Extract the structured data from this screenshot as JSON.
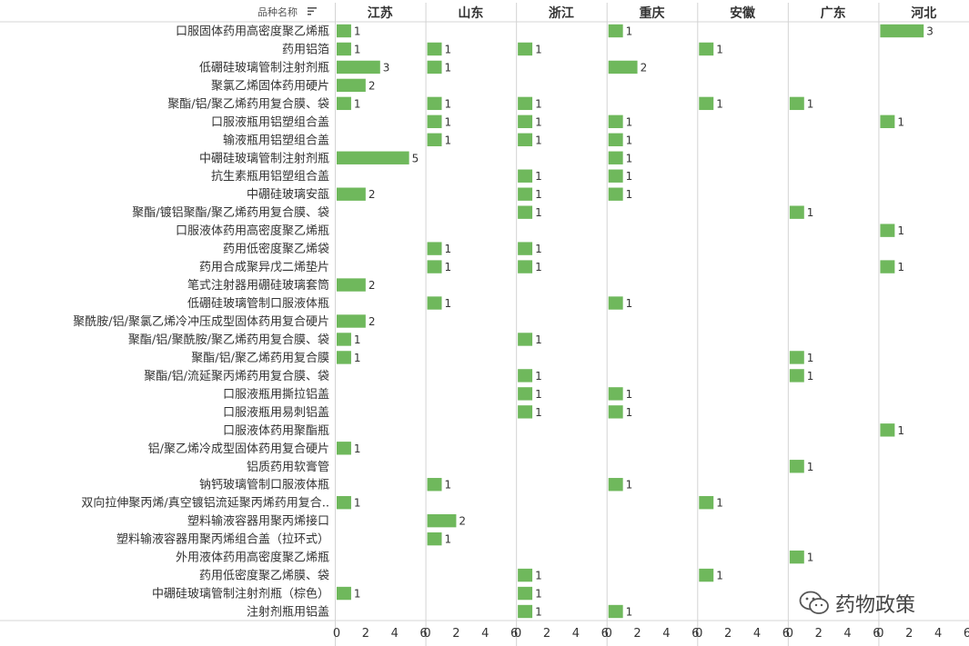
{
  "chart_data": {
    "type": "bar",
    "orientation": "horizontal-small-multiples",
    "row_field_label": "品种名称",
    "columns": [
      "江苏",
      "山东",
      "浙江",
      "重庆",
      "安徽",
      "广东",
      "河北"
    ],
    "x_ticks": [
      0,
      2,
      4,
      6
    ],
    "xlim": [
      0,
      6
    ],
    "bar_color": "#6fb85c",
    "grid": true,
    "rows": [
      {
        "name": "口服固体药用高密度聚乙烯瓶",
        "values": [
          1,
          null,
          null,
          1,
          null,
          null,
          3
        ]
      },
      {
        "name": "药用铝箔",
        "values": [
          1,
          1,
          1,
          null,
          1,
          null,
          null
        ]
      },
      {
        "name": "低硼硅玻璃管制注射剂瓶",
        "values": [
          3,
          1,
          null,
          2,
          null,
          null,
          null
        ]
      },
      {
        "name": "聚氯乙烯固体药用硬片",
        "values": [
          2,
          null,
          null,
          null,
          null,
          null,
          null
        ]
      },
      {
        "name": "聚酯/铝/聚乙烯药用复合膜、袋",
        "values": [
          1,
          1,
          1,
          null,
          1,
          1,
          null
        ]
      },
      {
        "name": "口服液瓶用铝塑组合盖",
        "values": [
          null,
          1,
          1,
          1,
          null,
          null,
          1
        ]
      },
      {
        "name": "输液瓶用铝塑组合盖",
        "values": [
          null,
          1,
          1,
          1,
          null,
          null,
          null
        ]
      },
      {
        "name": "中硼硅玻璃管制注射剂瓶",
        "values": [
          5,
          null,
          null,
          1,
          null,
          null,
          null
        ]
      },
      {
        "name": "抗生素瓶用铝塑组合盖",
        "values": [
          null,
          null,
          1,
          1,
          null,
          null,
          null
        ]
      },
      {
        "name": "中硼硅玻璃安瓿",
        "values": [
          2,
          null,
          1,
          1,
          null,
          null,
          null
        ]
      },
      {
        "name": "聚酯/镀铝聚酯/聚乙烯药用复合膜、袋",
        "values": [
          null,
          null,
          1,
          null,
          null,
          1,
          null
        ]
      },
      {
        "name": "口服液体药用高密度聚乙烯瓶",
        "values": [
          null,
          null,
          null,
          null,
          null,
          null,
          1
        ]
      },
      {
        "name": "药用低密度聚乙烯袋",
        "values": [
          null,
          1,
          1,
          null,
          null,
          null,
          null
        ]
      },
      {
        "name": "药用合成聚异戊二烯垫片",
        "values": [
          null,
          1,
          1,
          null,
          null,
          null,
          1
        ]
      },
      {
        "name": "笔式注射器用硼硅玻璃套筒",
        "values": [
          2,
          null,
          null,
          null,
          null,
          null,
          null
        ]
      },
      {
        "name": "低硼硅玻璃管制口服液体瓶",
        "values": [
          null,
          1,
          null,
          1,
          null,
          null,
          null
        ]
      },
      {
        "name": "聚酰胺/铝/聚氯乙烯冷冲压成型固体药用复合硬片",
        "values": [
          2,
          null,
          null,
          null,
          null,
          null,
          null
        ]
      },
      {
        "name": "聚酯/铝/聚酰胺/聚乙烯药用复合膜、袋",
        "values": [
          1,
          null,
          1,
          null,
          null,
          null,
          null
        ]
      },
      {
        "name": "聚酯/铝/聚乙烯药用复合膜",
        "values": [
          1,
          null,
          null,
          null,
          null,
          1,
          null
        ]
      },
      {
        "name": "聚酯/铝/流延聚丙烯药用复合膜、袋",
        "values": [
          null,
          null,
          1,
          null,
          null,
          1,
          null
        ]
      },
      {
        "name": "口服液瓶用撕拉铝盖",
        "values": [
          null,
          null,
          1,
          1,
          null,
          null,
          null
        ]
      },
      {
        "name": "口服液瓶用易刺铝盖",
        "values": [
          null,
          null,
          1,
          1,
          null,
          null,
          null
        ]
      },
      {
        "name": "口服液体药用聚酯瓶",
        "values": [
          null,
          null,
          null,
          null,
          null,
          null,
          1
        ]
      },
      {
        "name": "铝/聚乙烯冷成型固体药用复合硬片",
        "values": [
          1,
          null,
          null,
          null,
          null,
          null,
          null
        ]
      },
      {
        "name": "铝质药用软膏管",
        "values": [
          null,
          null,
          null,
          null,
          null,
          1,
          null
        ]
      },
      {
        "name": "钠钙玻璃管制口服液体瓶",
        "values": [
          null,
          1,
          null,
          1,
          null,
          null,
          null
        ]
      },
      {
        "name": "双向拉伸聚丙烯/真空镀铝流延聚丙烯药用复合..",
        "values": [
          1,
          null,
          null,
          null,
          1,
          null,
          null
        ]
      },
      {
        "name": "塑料输液容器用聚丙烯接口",
        "values": [
          null,
          2,
          null,
          null,
          null,
          null,
          null
        ]
      },
      {
        "name": "塑料输液容器用聚丙烯组合盖（拉环式）",
        "values": [
          null,
          1,
          null,
          null,
          null,
          null,
          null
        ]
      },
      {
        "name": "外用液体药用高密度聚乙烯瓶",
        "values": [
          null,
          null,
          null,
          null,
          null,
          1,
          null
        ]
      },
      {
        "name": "药用低密度聚乙烯膜、袋",
        "values": [
          null,
          null,
          1,
          null,
          1,
          null,
          null
        ]
      },
      {
        "name": "中硼硅玻璃管制注射剂瓶（棕色）",
        "values": [
          1,
          null,
          1,
          null,
          null,
          null,
          null
        ]
      },
      {
        "name": "注射剂瓶用铝盖",
        "values": [
          null,
          null,
          1,
          1,
          null,
          null,
          null
        ]
      }
    ]
  },
  "watermark": {
    "text": "药物政策",
    "icon": "wechat-icon"
  }
}
